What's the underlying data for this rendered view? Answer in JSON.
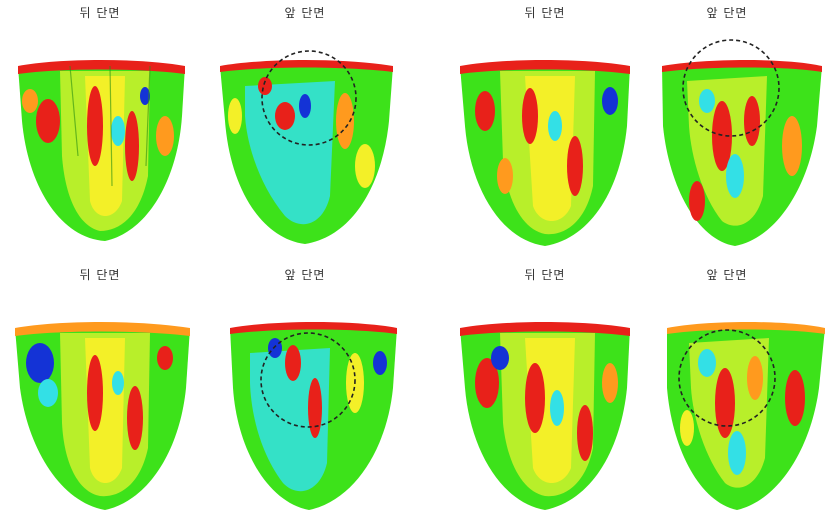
{
  "panels": [
    {
      "label": "뒤 단면"
    },
    {
      "label": "앞 단면"
    },
    {
      "label": "뒤 단면"
    },
    {
      "label": "앞 단면"
    },
    {
      "label": "뒤 단면"
    },
    {
      "label": "앞 단면"
    },
    {
      "label": "뒤 단면"
    },
    {
      "label": "앞 단면"
    }
  ],
  "colors": {
    "green": "#3de21a",
    "yellow_green": "#b8ef2a",
    "yellow": "#f3f028",
    "orange": "#ff9a1e",
    "red": "#e8211a",
    "cyan": "#33e0e6",
    "blue": "#1433d6",
    "circle_stroke": "#222222"
  }
}
